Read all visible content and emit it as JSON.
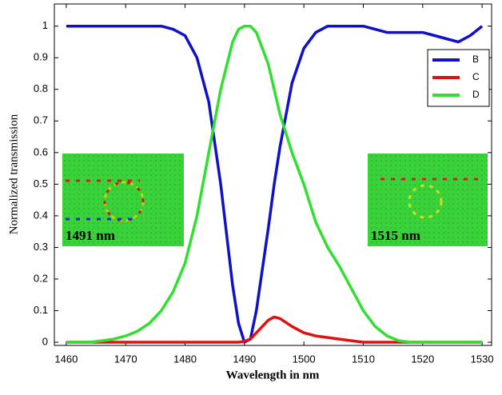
{
  "chart_data": {
    "type": "line",
    "xlabel": "Wavelength in nm",
    "ylabel": "Normalized transmission",
    "x": [
      1460,
      1462,
      1464,
      1466,
      1468,
      1470,
      1472,
      1474,
      1476,
      1478,
      1480,
      1482,
      1484,
      1486,
      1488,
      1489,
      1490,
      1491,
      1492,
      1494,
      1495,
      1496,
      1498,
      1500,
      1502,
      1504,
      1506,
      1508,
      1510,
      1512,
      1514,
      1516,
      1518,
      1520,
      1522,
      1524,
      1526,
      1528,
      1530
    ],
    "series": [
      {
        "name": "B",
        "color": "#1010c8",
        "values": [
          1,
          1,
          1,
          1,
          1,
          1,
          1,
          1,
          1,
          0.99,
          0.97,
          0.9,
          0.76,
          0.5,
          0.18,
          0.06,
          0,
          0.01,
          0.1,
          0.36,
          0.5,
          0.62,
          0.82,
          0.93,
          0.98,
          1,
          1,
          1,
          1,
          0.99,
          0.98,
          0.98,
          0.98,
          0.98,
          0.97,
          0.96,
          0.95,
          0.97,
          1
        ]
      },
      {
        "name": "C",
        "color": "#e01010",
        "values": [
          0,
          0,
          0,
          0,
          0,
          0,
          0,
          0,
          0,
          0,
          0,
          0,
          0,
          0,
          0,
          0,
          0.003,
          0.01,
          0.03,
          0.07,
          0.08,
          0.075,
          0.05,
          0.03,
          0.02,
          0.015,
          0.01,
          0.005,
          0,
          0,
          0,
          0,
          0,
          0,
          0,
          0,
          0,
          0,
          0
        ]
      },
      {
        "name": "D",
        "color": "#30e030",
        "values": [
          0,
          0,
          0,
          0.005,
          0.01,
          0.02,
          0.035,
          0.06,
          0.1,
          0.16,
          0.25,
          0.4,
          0.6,
          0.8,
          0.95,
          0.99,
          1,
          1,
          0.98,
          0.88,
          0.8,
          0.72,
          0.6,
          0.5,
          0.38,
          0.3,
          0.24,
          0.17,
          0.1,
          0.05,
          0.02,
          0.005,
          0,
          0,
          0,
          0,
          0,
          0,
          0
        ]
      }
    ],
    "xlim": [
      1458,
      1531.6
    ],
    "xticks": [
      1460,
      1470,
      1480,
      1490,
      1500,
      1510,
      1520,
      1530
    ],
    "ylim": [
      -0.01,
      1.07
    ],
    "yticks": [
      0,
      0.1,
      0.2,
      0.3,
      0.4,
      0.5,
      0.6,
      0.7,
      0.8,
      0.9,
      1
    ],
    "grid": false,
    "legend": "upper right",
    "annotations": [
      "1491 nm",
      "1515 nm"
    ]
  }
}
